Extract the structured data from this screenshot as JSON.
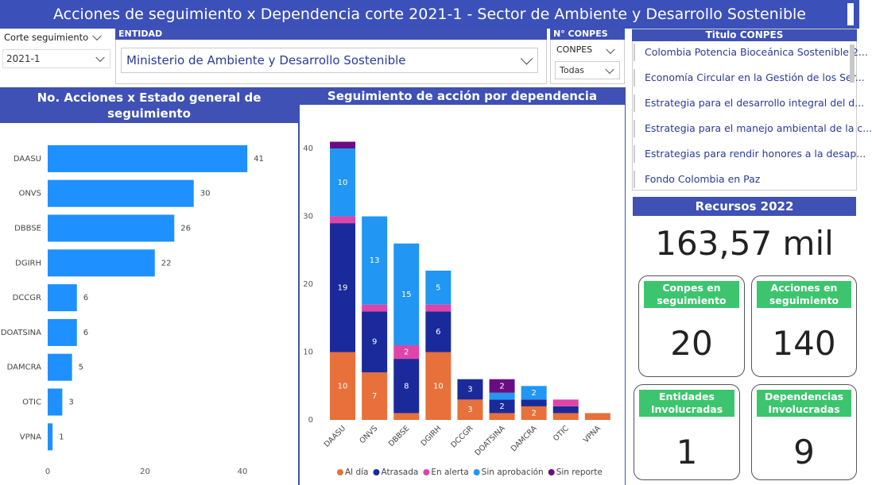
{
  "header": {
    "title": "Acciones de seguimiento x Dependencia corte 2021-1 - Sector de Ambiente y Desarrollo Sostenible"
  },
  "filters": {
    "corte": {
      "label": "Corte seguimiento",
      "value": "2021-1"
    },
    "entidad": {
      "label": "ENTIDAD",
      "value": "Ministerio de Ambiente y Desarrollo Sostenible"
    },
    "conpes": {
      "label": "N° CONPES",
      "field": "CONPES",
      "value": "Todas"
    }
  },
  "conpes_list": {
    "title": "Titulo CONPES",
    "items": [
      "Colombia Potencia Bioceánica Sostenible 2...",
      "Economía Circular en la Gestión de los Ser...",
      "Estrategia para el desarrollo integral del d...",
      "Estrategia para el manejo ambiental de la c...",
      "Estrategias para rendir honores a la desap...",
      "Fondo Colombia en Paz"
    ]
  },
  "chart_data": [
    {
      "type": "bar",
      "orientation": "horizontal",
      "title": "No. Acciones x Estado general de seguimiento",
      "categories": [
        "DAASU",
        "ONVS",
        "DBBSE",
        "DGIRH",
        "DCCGR",
        "DOATSINA",
        "DAMCRA",
        "OTIC",
        "VPNA"
      ],
      "values": [
        41,
        30,
        26,
        22,
        6,
        6,
        5,
        3,
        1
      ],
      "color": "#1e90ff",
      "xlim": [
        0,
        44
      ],
      "xticks": [
        0,
        20,
        40
      ],
      "grid": false
    },
    {
      "type": "stacked_bar",
      "title": "Seguimiento de acción por dependencia",
      "categories": [
        "DAASU",
        "ONVS",
        "DBBSE",
        "DGIRH",
        "DCCGR",
        "DOATSINA",
        "DAMCRA",
        "OTIC",
        "VPNA"
      ],
      "series": [
        {
          "name": "Al día",
          "color": "#e8703a",
          "values": [
            10,
            7,
            1,
            10,
            3,
            1,
            2,
            1,
            1
          ]
        },
        {
          "name": "Atrasada",
          "color": "#1a2a9a",
          "values": [
            19,
            9,
            8,
            6,
            3,
            2,
            1,
            1,
            0
          ]
        },
        {
          "name": "En alerta",
          "color": "#e044a8",
          "values": [
            1,
            1,
            2,
            1,
            0,
            0,
            0,
            1,
            0
          ]
        },
        {
          "name": "Sin aprobación",
          "color": "#2196f3",
          "values": [
            10,
            13,
            15,
            5,
            0,
            1,
            2,
            0,
            0
          ]
        },
        {
          "name": "Sin reporte",
          "color": "#6a0d83",
          "values": [
            1,
            0,
            0,
            0,
            0,
            2,
            0,
            0,
            0
          ]
        }
      ],
      "ylim": [
        0,
        42
      ],
      "yticks": [
        0,
        10,
        20,
        30,
        40
      ],
      "grid": false,
      "legend": "bottom"
    }
  ],
  "resources": {
    "title": "Recursos 2022",
    "value": "163,57 mil"
  },
  "cards": [
    {
      "label": "Conpes en seguimiento",
      "value": 20
    },
    {
      "label": "Acciones en seguimiento",
      "value": 140
    },
    {
      "label": "Entidades Involucradas",
      "value": 1
    },
    {
      "label": "Dependencias Involucradas",
      "value": 9
    }
  ]
}
